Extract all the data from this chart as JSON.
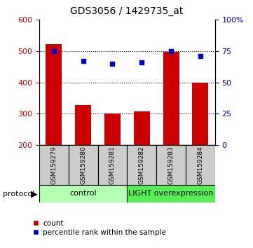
{
  "title": "GDS3056 / 1429735_at",
  "samples": [
    "GSM159279",
    "GSM159280",
    "GSM159281",
    "GSM159282",
    "GSM159283",
    "GSM159284"
  ],
  "counts": [
    522,
    328,
    300,
    307,
    498,
    400
  ],
  "percentile_ranks": [
    75,
    67,
    65,
    66,
    75,
    71
  ],
  "ylim_left": [
    200,
    600
  ],
  "ylim_right": [
    0,
    100
  ],
  "yticks_left": [
    200,
    300,
    400,
    500,
    600
  ],
  "yticks_right": [
    0,
    25,
    50,
    75,
    100
  ],
  "ytick_labels_right": [
    "0",
    "25",
    "50",
    "75",
    "100%"
  ],
  "bar_color": "#cc0000",
  "dot_color": "#0000cc",
  "control_label": "control",
  "light_label": "LIGHT overexpression",
  "control_color": "#b3ffb3",
  "light_color": "#55ee55",
  "protocol_label": "protocol",
  "legend_count_label": "count",
  "legend_pct_label": "percentile rank within the sample",
  "bar_bottom": 200,
  "tick_label_color_left": "#cc0000",
  "tick_label_color_right": "#0000cc",
  "sample_box_color": "#cccccc",
  "n_control": 3,
  "n_light": 3
}
